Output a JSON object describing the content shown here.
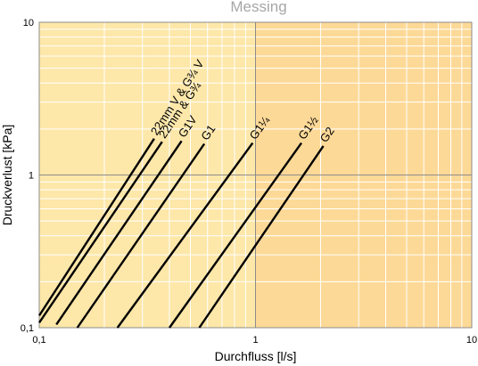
{
  "chart_data": {
    "type": "line",
    "title": "Messing",
    "xlabel": "Durchfluss [l/s]",
    "ylabel": "Druckverlust [kPa]",
    "x_scale": "log",
    "y_scale": "log",
    "xlim": [
      0.1,
      10
    ],
    "ylim": [
      0.1,
      10
    ],
    "x_ticks": [
      {
        "value": 0.1,
        "label": "0,1"
      },
      {
        "value": 1,
        "label": "1"
      },
      {
        "value": 10,
        "label": "10"
      }
    ],
    "y_ticks": [
      {
        "value": 0.1,
        "label": "0,1"
      },
      {
        "value": 1,
        "label": "1"
      },
      {
        "value": 10,
        "label": "10"
      }
    ],
    "grid": true,
    "legend": "none",
    "colors": {
      "background_left": "#fde7a9",
      "background_right": "#fdd997",
      "grid_minor": "#ffffff",
      "grid_major": "#8c8c8c",
      "line": "#000000"
    },
    "series": [
      {
        "name": "22mm V & G¾ V",
        "points": [
          [
            0.1,
            0.12
          ],
          [
            0.34,
            1.73
          ]
        ]
      },
      {
        "name": "22mm & G¾",
        "points": [
          [
            0.1,
            0.108
          ],
          [
            0.37,
            1.65
          ]
        ]
      },
      {
        "name": "G1V",
        "points": [
          [
            0.12,
            0.105
          ],
          [
            0.455,
            1.67
          ]
        ]
      },
      {
        "name": "G1",
        "points": [
          [
            0.15,
            0.1
          ],
          [
            0.58,
            1.6
          ]
        ]
      },
      {
        "name": "G1¼",
        "points": [
          [
            0.23,
            0.1
          ],
          [
            0.97,
            1.62
          ]
        ]
      },
      {
        "name": "G1½",
        "points": [
          [
            0.4,
            0.1
          ],
          [
            1.63,
            1.62
          ]
        ]
      },
      {
        "name": "G2",
        "points": [
          [
            0.55,
            0.1
          ],
          [
            2.06,
            1.55
          ]
        ]
      }
    ]
  }
}
